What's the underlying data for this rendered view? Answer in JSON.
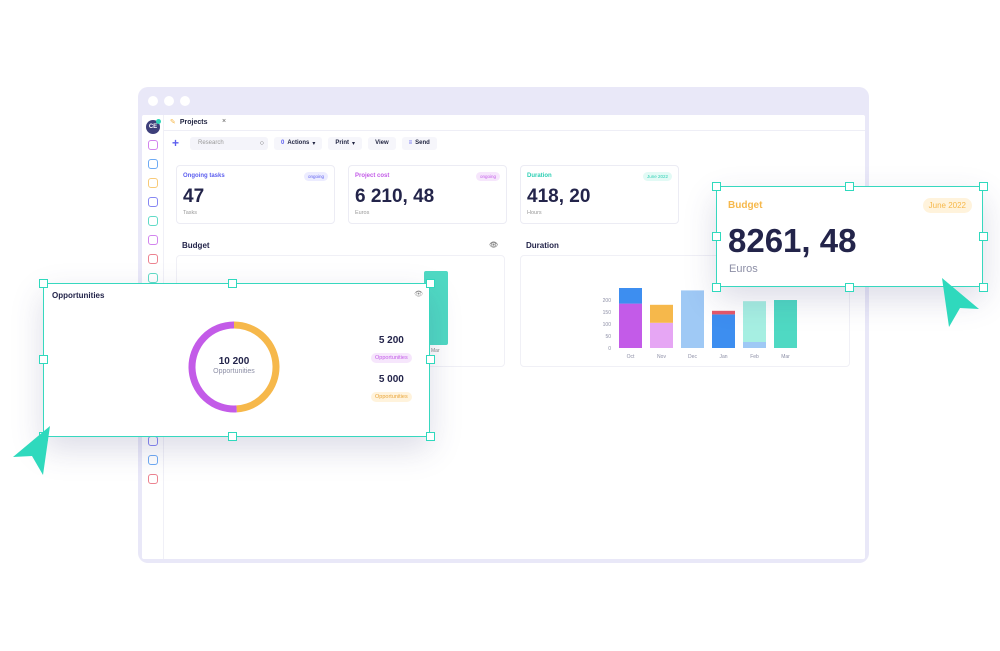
{
  "app": {
    "avatar_initials": "CE",
    "tab": {
      "label": "Projects",
      "close": "×"
    },
    "toolbar": {
      "add": "+",
      "search_placeholder": "Research",
      "actions_label": "Actions",
      "actions_count": "0",
      "print_label": "Print",
      "view_label": "View",
      "send_label": "Send"
    }
  },
  "cards": [
    {
      "label": "Ongoing tasks",
      "value": "47",
      "unit": "Tasks",
      "badge": "ongoing",
      "color": "#5d5fef",
      "badge_bg": "#ececff"
    },
    {
      "label": "Project cost",
      "value": "6 210, 48",
      "unit": "Euros",
      "badge": "ongoing",
      "color": "#c35be8",
      "badge_bg": "#f6e6fc"
    },
    {
      "label": "Duration",
      "value": "418, 20",
      "unit": "Hours",
      "badge": "June 2022",
      "color": "#2ccfb4",
      "badge_bg": "#e2faf5"
    }
  ],
  "panels": {
    "budget_title": "Budget",
    "duration_title": "Duration"
  },
  "duration_chart": {
    "yticks": [
      "200",
      "150",
      "100",
      "50",
      "0"
    ],
    "categories": [
      "Oct",
      "Nov",
      "Dec",
      "Jan",
      "Feb",
      "Mar"
    ]
  },
  "budget_fragment": {
    "label": "Mar"
  },
  "opportunities": {
    "title": "Opportunities",
    "total": "10 200",
    "total_label": "Opportunities",
    "items": [
      {
        "value": "5 200",
        "tag": "Opportunities",
        "color": "#c35be8",
        "bg": "#f6e6fc"
      },
      {
        "value": "5 000",
        "tag": "Opportunities",
        "color": "#e9a53a",
        "bg": "#fff3dc"
      }
    ]
  },
  "budget_widget": {
    "label": "Budget",
    "badge": "June 2022",
    "value": "8261, 48",
    "unit": "Euros"
  },
  "colors": {
    "accent_teal": "#2fd9bd",
    "purple": "#c35be8",
    "orange": "#f6b84b",
    "navy": "#23244a"
  },
  "chart_data": {
    "type": "bar",
    "stacked": true,
    "categories": [
      "Oct",
      "Nov",
      "Dec",
      "Jan",
      "Feb",
      "Mar"
    ],
    "ylim": [
      0,
      250
    ],
    "yticks": [
      0,
      50,
      100,
      150,
      200
    ],
    "grid": false,
    "series": [
      {
        "color": "#c35be8",
        "values": [
          185,
          0,
          0,
          0,
          0,
          0
        ]
      },
      {
        "color": "#3d8ef0",
        "values": [
          65,
          0,
          0,
          0,
          0,
          0
        ]
      },
      {
        "color": "#e6a6f4",
        "values": [
          0,
          105,
          0,
          0,
          0,
          0
        ]
      },
      {
        "color": "#f6b84b",
        "values": [
          0,
          75,
          0,
          0,
          0,
          0
        ]
      },
      {
        "color": "#9fc9f5",
        "values": [
          0,
          0,
          240,
          0,
          0,
          0
        ]
      },
      {
        "color": "#3d8ef0",
        "values": [
          0,
          0,
          0,
          140,
          0,
          0
        ]
      },
      {
        "color": "#e5586a",
        "values": [
          0,
          0,
          0,
          15,
          0,
          0
        ]
      },
      {
        "color": "#9fc9f5",
        "values": [
          0,
          0,
          0,
          0,
          25,
          0
        ]
      },
      {
        "color": "#a6efe2",
        "values": [
          0,
          0,
          0,
          0,
          170,
          0
        ]
      },
      {
        "color": "#4fd9c3",
        "values": [
          0,
          0,
          0,
          0,
          0,
          200
        ]
      }
    ]
  },
  "donut": {
    "type": "pie",
    "values": [
      5000,
      5200
    ],
    "colors": [
      "#f6b84b",
      "#c35be8"
    ]
  }
}
